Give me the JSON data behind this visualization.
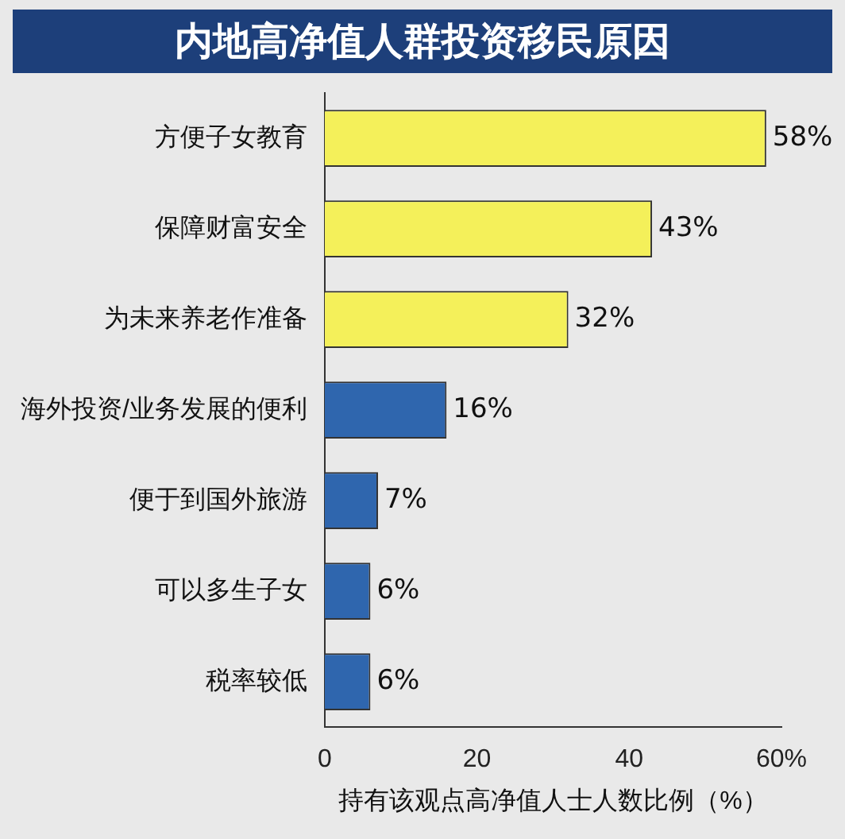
{
  "chart_data": {
    "type": "bar",
    "orientation": "horizontal",
    "title": "内地高净值人群投资移民原因",
    "categories": [
      "方便子女教育",
      "保障财富安全",
      "为未来养老作准备",
      "海外投资/业务发展的便利",
      "便于到国外旅游",
      "可以多生子女",
      "税率较低"
    ],
    "values": [
      58,
      43,
      32,
      16,
      7,
      6,
      6
    ],
    "value_labels": [
      "58%",
      "43%",
      "32%",
      "16%",
      "7%",
      "6%",
      "6%"
    ],
    "colors": [
      "#f4f05a",
      "#f4f05a",
      "#f4f05a",
      "#2f66ae",
      "#2f66ae",
      "#2f66ae",
      "#2f66ae"
    ],
    "xlim": [
      0,
      60
    ],
    "xticks": [
      0,
      20,
      40,
      {
        "value": 60,
        "label": "60%"
      }
    ],
    "xlabel": "持有该观点高净值人士人数比例（%）",
    "grid": false,
    "legend": false
  }
}
